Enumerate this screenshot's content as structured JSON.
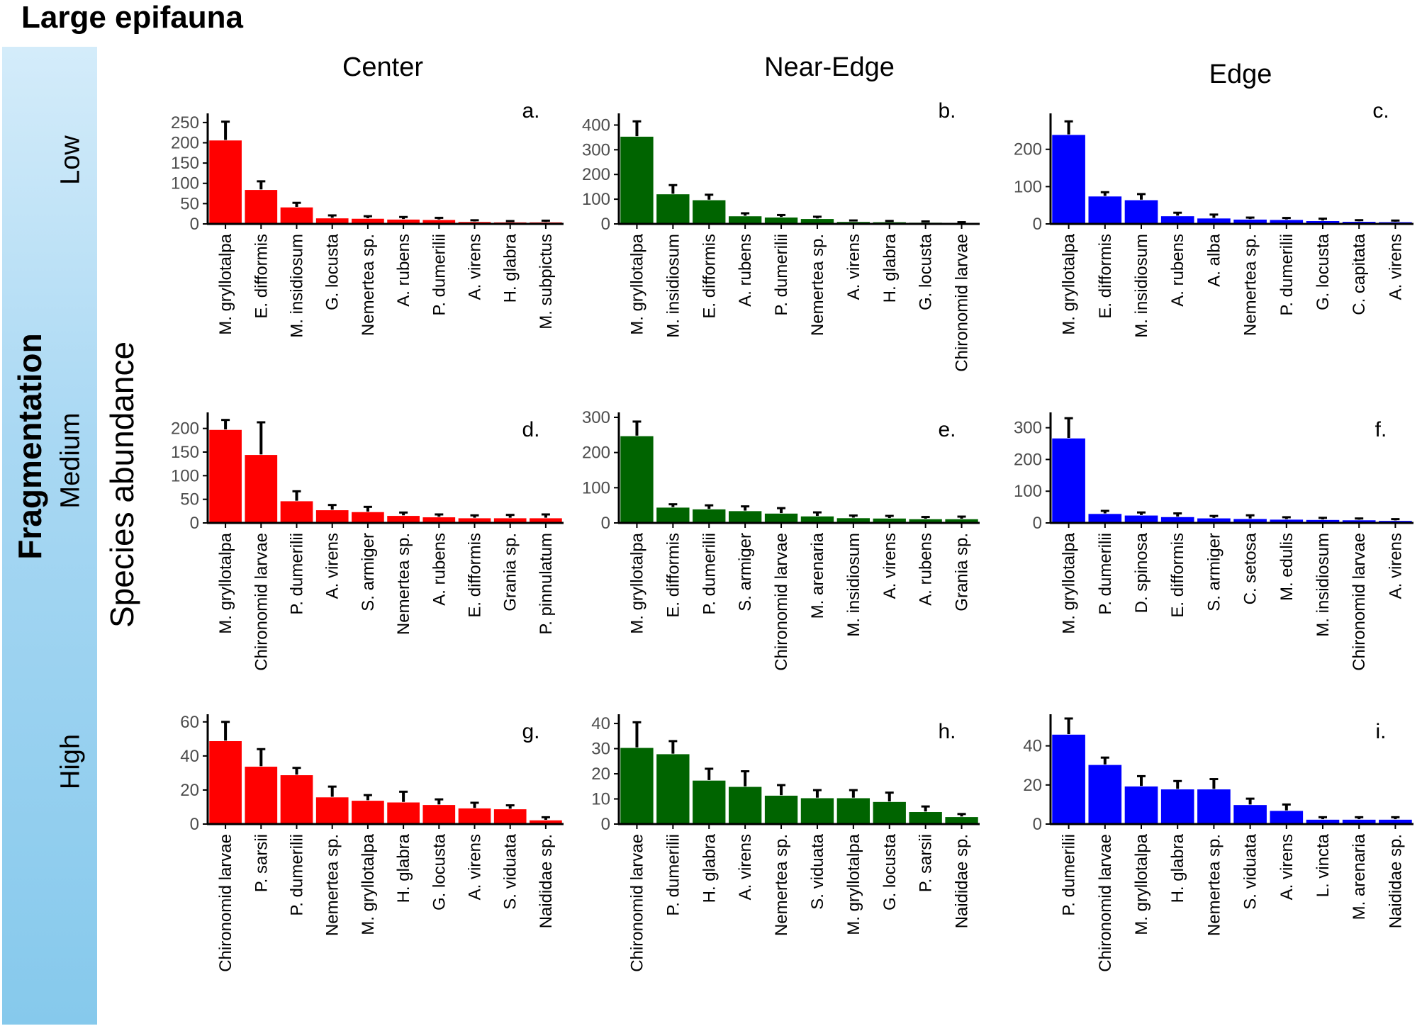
{
  "title": "Large epifauna",
  "side_label": "Fragmentation",
  "y_label": "Species abundance",
  "rows": [
    "Low",
    "Medium",
    "High"
  ],
  "columns": [
    "Center",
    "Near-Edge",
    "Edge"
  ],
  "colors": {
    "Center": "#ff0000",
    "Near-Edge": "#006400",
    "Edge": "#0000ff",
    "error": "#000000"
  },
  "chart_data": [
    {
      "type": "bar",
      "panel": "a.",
      "row": "Low",
      "column": "Center",
      "categories": [
        "M. gryllotalpa",
        "E. difformis",
        "M. insidiosum",
        "G. locusta",
        "Nemertea sp.",
        "A. rubens",
        "P. dumerilii",
        "A. virens",
        "H. glabra",
        "M. subpictus"
      ],
      "values": [
        207,
        85,
        42,
        15,
        14,
        12,
        11,
        6,
        5,
        5
      ],
      "errors": [
        45,
        20,
        10,
        6,
        5,
        5,
        4,
        3,
        2,
        3
      ],
      "yticks": [
        0,
        50,
        100,
        150,
        200,
        250
      ],
      "ylim": [
        0,
        262
      ]
    },
    {
      "type": "bar",
      "panel": "b.",
      "row": "Low",
      "column": "Near-Edge",
      "categories": [
        "M. gryllotalpa",
        "M. insidiosum",
        "E. difformis",
        "A. rubens",
        "P. dumerilii",
        "Nemertea sp.",
        "A. virens",
        "H. glabra",
        "G. locusta",
        "Chironomid larvae"
      ],
      "values": [
        355,
        122,
        98,
        33,
        28,
        22,
        10,
        9,
        7,
        5
      ],
      "errors": [
        60,
        35,
        20,
        10,
        8,
        7,
        4,
        3,
        3,
        2
      ],
      "yticks": [
        0,
        100,
        200,
        300,
        400
      ],
      "ylim": [
        0,
        430
      ]
    },
    {
      "type": "bar",
      "panel": "c.",
      "row": "Low",
      "column": "Edge",
      "categories": [
        "M. gryllotalpa",
        "E. difformis",
        "M. insidiosum",
        "A. rubens",
        "A. alba",
        "Nemertea sp.",
        "P. dumerilii",
        "G. locusta",
        "C. capitata",
        "A. virens"
      ],
      "values": [
        240,
        75,
        65,
        22,
        16,
        13,
        12,
        9,
        7,
        6
      ],
      "errors": [
        35,
        10,
        15,
        8,
        9,
        4,
        4,
        5,
        3,
        3
      ],
      "yticks": [
        0,
        100,
        200
      ],
      "ylim": [
        0,
        285
      ]
    },
    {
      "type": "bar",
      "panel": "d.",
      "row": "Medium",
      "column": "Center",
      "categories": [
        "M. gryllotalpa",
        "Chironomid larvae",
        "P. dumerilii",
        "A. virens",
        "S. armiger",
        "Nemertea sp.",
        "A. rubens",
        "E. difformis",
        "Grania sp.",
        "P. pinnulatum"
      ],
      "values": [
        198,
        145,
        47,
        28,
        24,
        16,
        13,
        11,
        11,
        11
      ],
      "errors": [
        20,
        68,
        20,
        10,
        10,
        6,
        5,
        5,
        6,
        7
      ],
      "yticks": [
        0,
        50,
        100,
        150,
        200
      ],
      "ylim": [
        0,
        225
      ]
    },
    {
      "type": "bar",
      "panel": "e.",
      "row": "Medium",
      "column": "Near-Edge",
      "categories": [
        "M. gryllotalpa",
        "E. difformis",
        "P. dumerilii",
        "S. armiger",
        "Chironomid larvae",
        "M. arenaria",
        "M. insidiosum",
        "A. virens",
        "A. rubens",
        "Grania sp."
      ],
      "values": [
        248,
        45,
        40,
        35,
        28,
        20,
        15,
        14,
        12,
        12
      ],
      "errors": [
        40,
        8,
        10,
        12,
        14,
        10,
        6,
        6,
        5,
        6
      ],
      "yticks": [
        0,
        100,
        200,
        300
      ],
      "ylim": [
        0,
        302
      ]
    },
    {
      "type": "bar",
      "panel": "f.",
      "row": "Medium",
      "column": "Edge",
      "categories": [
        "M. gryllotalpa",
        "P. dumerilii",
        "D. spinosa",
        "E. difformis",
        "S. armiger",
        "C. setosa",
        "M. edulis",
        "M. insidiosum",
        "Chironomid larvae",
        "A. virens"
      ],
      "values": [
        268,
        30,
        25,
        20,
        16,
        14,
        12,
        11,
        10,
        8
      ],
      "errors": [
        62,
        8,
        8,
        10,
        6,
        10,
        6,
        5,
        4,
        4
      ],
      "yticks": [
        0,
        100,
        200,
        300
      ],
      "ylim": [
        0,
        335
      ]
    },
    {
      "type": "bar",
      "panel": "g.",
      "row": "High",
      "column": "Center",
      "categories": [
        "Chironomid larvae",
        "P. sarsii",
        "P. dumerilii",
        "Nemertea sp.",
        "M. gryllotalpa",
        "H. glabra",
        "G. locusta",
        "A. virens",
        "S. viduata",
        "Naididae sp."
      ],
      "values": [
        49,
        34,
        29,
        16,
        14,
        13,
        11.5,
        9.5,
        9,
        2.5
      ],
      "errors": [
        11,
        10,
        4,
        6,
        3,
        6,
        3,
        3,
        2,
        1.5
      ],
      "yticks": [
        0,
        20,
        40,
        60
      ],
      "ylim": [
        0,
        62
      ]
    },
    {
      "type": "bar",
      "panel": "h.",
      "row": "High",
      "column": "Near-Edge",
      "categories": [
        "Chironomid larvae",
        "P. dumerilii",
        "H. glabra",
        "A. virens",
        "Nemertea sp.",
        "S. viduata",
        "M. gryllotalpa",
        "G. locusta",
        "P. sarsii",
        "Naididae sp."
      ],
      "values": [
        30.5,
        28,
        17.5,
        15,
        11.5,
        10.5,
        10.5,
        9,
        5,
        3
      ],
      "errors": [
        10,
        5,
        4.5,
        6,
        4,
        3,
        3,
        3.5,
        2,
        1
      ],
      "yticks": [
        0,
        10,
        20,
        30,
        40
      ],
      "ylim": [
        0,
        42
      ]
    },
    {
      "type": "bar",
      "panel": "i.",
      "row": "High",
      "column": "Edge",
      "categories": [
        "P. dumerilii",
        "Chironomid larvae",
        "M. gryllotalpa",
        "H. glabra",
        "Nemertea sp.",
        "S. viduata",
        "A. virens",
        "L. vincta",
        "M. arenaria",
        "Naididae sp."
      ],
      "values": [
        46,
        30.5,
        19.5,
        18,
        18,
        10,
        7,
        2.5,
        2.5,
        2.5
      ],
      "errors": [
        8,
        3.5,
        5,
        4,
        5,
        3,
        3,
        1,
        1,
        1
      ],
      "yticks": [
        0,
        20,
        40
      ],
      "ylim": [
        0,
        54
      ]
    }
  ]
}
